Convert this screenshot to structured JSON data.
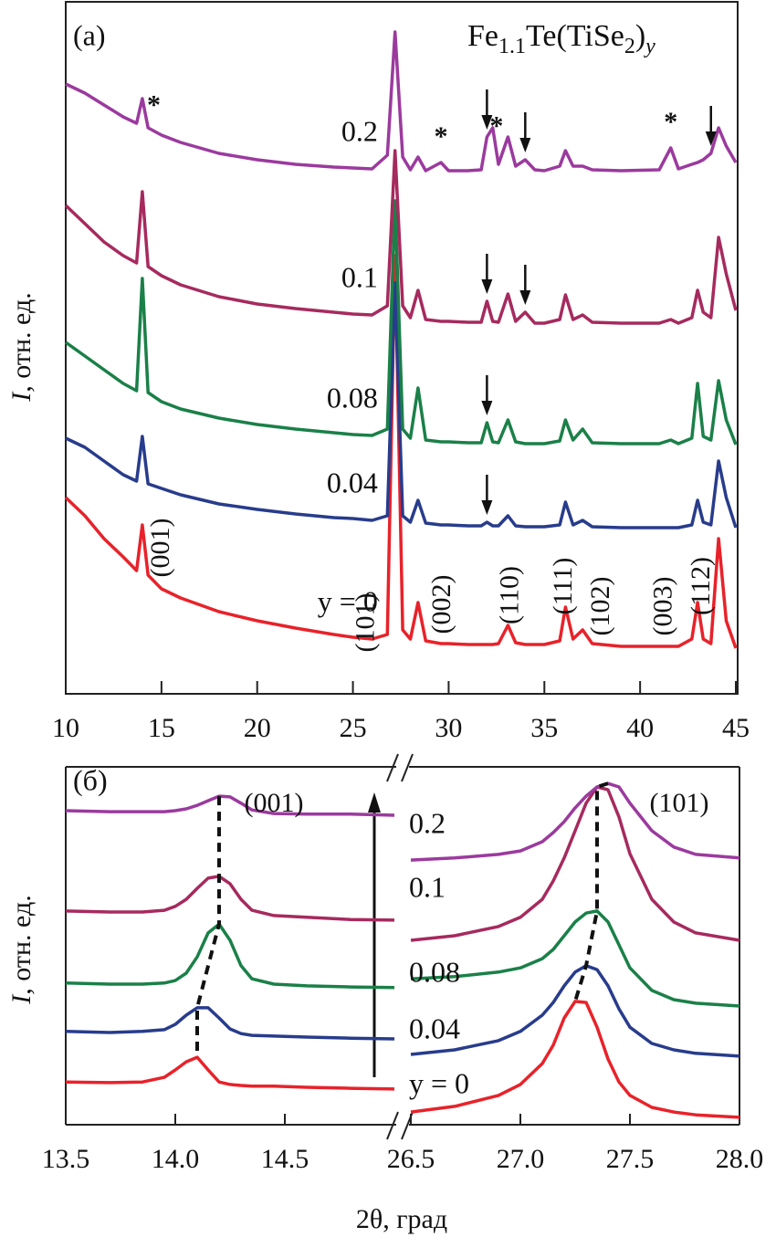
{
  "chart_data": [
    {
      "type": "line",
      "panel_label": "(a)",
      "title_parts": [
        {
          "text": "Fe"
        },
        {
          "text": "1.1",
          "sub": true
        },
        {
          "text": "Te(TiSe"
        },
        {
          "text": "2",
          "sub": true
        },
        {
          "text": ")"
        },
        {
          "text": "y",
          "sub": true,
          "italic": true
        }
      ],
      "y_label": {
        "var": "I",
        "text": ", отн. ед."
      },
      "xlim": [
        10,
        45
      ],
      "xticks": [
        10,
        15,
        20,
        25,
        30,
        35,
        40,
        45
      ],
      "ylim": [
        0,
        150
      ],
      "x": [
        10,
        11,
        12,
        13,
        13.7,
        14.0,
        14.3,
        15,
        16,
        18,
        20,
        22,
        24,
        25,
        26,
        26.8,
        27.2,
        27.6,
        28.0,
        28.4,
        28.8,
        29.6,
        30,
        31,
        31.7,
        32.0,
        32.3,
        32.6,
        33.1,
        33.5,
        34.0,
        34.5,
        35,
        35.8,
        36.1,
        36.5,
        37.0,
        37.5,
        39,
        41,
        41.6,
        42,
        42.7,
        43.0,
        43.3,
        43.7,
        44.1,
        44.5,
        45
      ],
      "marker_text": "*",
      "series": [
        {
          "name": "0.2",
          "color": "#9b3a9e",
          "arrows": [
            32.0,
            34.0,
            43.7
          ],
          "stars": [
            14.6,
            29.6,
            32.5,
            41.6
          ],
          "values": [
            133.6,
            131.6,
            129,
            126.4,
            125,
            130.4,
            124,
            122.4,
            120.8,
            118.4,
            117,
            116,
            115.4,
            115.2,
            115,
            118,
            145,
            117.6,
            114.8,
            117.6,
            114.6,
            116.4,
            114.6,
            114.6,
            114.8,
            122,
            124,
            116,
            122,
            115.6,
            117,
            114.8,
            114.6,
            115.6,
            119,
            115.6,
            115.6,
            114.8,
            114.6,
            114.8,
            119.6,
            115,
            116,
            116.4,
            117,
            118.4,
            124,
            120,
            116.4
          ]
        },
        {
          "name": "0.1",
          "color": "#a62a5e",
          "arrows": [
            32.0,
            34.0
          ],
          "values": [
            107,
            103,
            99,
            96,
            94.4,
            110,
            93.6,
            91.6,
            89.6,
            87,
            85.4,
            84.4,
            83.6,
            83.2,
            83,
            85,
            119,
            85,
            82.4,
            88.4,
            82,
            81.6,
            81.6,
            81.4,
            81.4,
            86,
            81.6,
            81.4,
            87.6,
            81.6,
            83.6,
            81.2,
            81.2,
            82,
            87.4,
            82,
            83,
            81.4,
            81.2,
            81.2,
            82,
            81.2,
            82.4,
            88.4,
            83.6,
            82.4,
            100,
            92,
            84
          ]
        },
        {
          "name": "0.08",
          "color": "#1a8048",
          "arrows": [
            32.0
          ],
          "values": [
            77,
            74,
            71,
            68,
            66.4,
            91,
            66,
            64,
            62.4,
            60.4,
            59,
            58,
            57.2,
            56.8,
            56.6,
            58,
            108,
            58,
            56,
            67,
            55.6,
            55.2,
            55.2,
            55,
            55,
            59.4,
            55.2,
            55,
            60,
            55.2,
            54.8,
            54.8,
            54.8,
            55.4,
            60,
            55.6,
            58,
            55,
            54.8,
            54.8,
            55.6,
            54.8,
            56,
            68,
            56.4,
            55.6,
            68.6,
            60,
            54.6
          ]
        },
        {
          "name": "0.04",
          "color": "#283c8c",
          "arrows": [
            32.0
          ],
          "values": [
            56,
            54,
            51,
            48,
            46.6,
            56.4,
            46,
            45,
            43.6,
            41.6,
            40.4,
            39.4,
            38.6,
            38.4,
            38,
            39,
            90,
            39,
            37.6,
            42.4,
            37.4,
            37,
            37,
            36.8,
            36.8,
            37.6,
            36.8,
            36.8,
            39,
            36.8,
            36.6,
            36.6,
            36.6,
            37,
            42,
            37,
            38,
            36.6,
            36.4,
            36.4,
            36.4,
            36.4,
            37,
            42.4,
            37.6,
            37,
            51,
            43,
            36.4
          ]
        },
        {
          "name": "y = 0",
          "color": "#e8222a",
          "values": [
            43,
            39,
            34,
            30,
            27,
            37,
            26,
            23,
            21,
            18,
            16,
            14.4,
            13,
            12.4,
            12,
            13,
            96,
            14,
            12,
            20,
            11.6,
            11,
            11,
            10.8,
            10.8,
            10.8,
            10.8,
            11,
            15,
            11.2,
            10.8,
            10.8,
            10.8,
            11.6,
            19,
            12,
            14,
            11,
            10.4,
            10.4,
            10.4,
            10.4,
            12,
            20,
            12,
            11,
            34,
            16,
            10
          ]
        }
      ],
      "peak_labels": [
        {
          "label": "(001)",
          "x": 14.0
        },
        {
          "label": "(101)",
          "x": 27.2
        },
        {
          "label": "(002)",
          "x": 28.4
        },
        {
          "label": "(110)",
          "x": 33.1
        },
        {
          "label": "(111)",
          "x": 36.1
        },
        {
          "label": "(102)",
          "x": 37.0
        },
        {
          "label": "(003)",
          "x": 41.6
        },
        {
          "label": "(112)",
          "x": 43.0
        }
      ]
    },
    {
      "type": "line",
      "panel_label": "(б)",
      "x_label": "2θ, град",
      "y_label": {
        "var": "I",
        "text": ", отн. ед."
      },
      "xlim": [
        13.5,
        15
      ],
      "xticks": [
        13.5,
        {
          "value": 14,
          "label": "14.0"
        },
        14.5
      ],
      "ylim": [
        0,
        100
      ],
      "x": [
        13.5,
        13.7,
        13.85,
        13.95,
        14.0,
        14.05,
        14.1,
        14.15,
        14.2,
        14.25,
        14.3,
        14.35,
        14.45,
        14.6,
        14.8,
        15.0
      ],
      "series": [
        {
          "color": "#9b3a9e",
          "values": [
            88.9,
            88.6,
            88.6,
            88.6,
            88.9,
            89.4,
            90.4,
            91.7,
            93.0,
            92.8,
            91.0,
            89.1,
            88.1,
            87.9,
            87.9,
            87.6
          ]
        },
        {
          "color": "#a62a5e",
          "values": [
            60.5,
            60.2,
            60.2,
            60.7,
            61.8,
            63.8,
            66.9,
            69.8,
            70.3,
            68.2,
            63.8,
            60.7,
            59.2,
            58.7,
            58.1,
            57.9
          ]
        },
        {
          "color": "#1a8048",
          "values": [
            40.1,
            39.8,
            39.8,
            40.1,
            40.8,
            42.9,
            47.5,
            54.3,
            56.8,
            52.2,
            45.0,
            41.3,
            39.8,
            39.3,
            39.0,
            38.8
          ]
        },
        {
          "color": "#283c8c",
          "values": [
            26.4,
            26.1,
            26.4,
            26.9,
            28.4,
            31.0,
            33.1,
            33.1,
            30.2,
            27.1,
            25.8,
            25.3,
            25.1,
            24.8,
            24.5,
            24.3
          ]
        },
        {
          "color": "#e8222a",
          "values": [
            12.1,
            11.9,
            12.1,
            13.4,
            15.5,
            17.8,
            19.1,
            15.5,
            12.1,
            11.4,
            11.1,
            10.9,
            10.9,
            10.6,
            10.3,
            10.1
          ]
        }
      ],
      "peak_labels": [
        {
          "label": "(001)",
          "x": 14.2
        }
      ]
    },
    {
      "type": "line",
      "xlim": [
        26.5,
        28
      ],
      "xticks": [
        26.5,
        {
          "value": 27,
          "label": "27.0"
        },
        27.5,
        {
          "value": 28,
          "label": "28.0"
        }
      ],
      "ylim": [
        0,
        100
      ],
      "x": [
        26.5,
        26.7,
        26.9,
        27.0,
        27.1,
        27.15,
        27.2,
        27.25,
        27.3,
        27.35,
        27.4,
        27.45,
        27.5,
        27.6,
        27.7,
        27.8,
        28.0
      ],
      "series": [
        {
          "name": "0.2",
          "color": "#9b3a9e",
          "values": [
            74.9,
            75.5,
            76.5,
            77.5,
            80.1,
            82.7,
            85.8,
            89.7,
            93.0,
            95.6,
            96.6,
            95.6,
            91.0,
            83.2,
            78.6,
            76.5,
            75.5
          ]
        },
        {
          "name": "0.1",
          "color": "#a62a5e",
          "values": [
            52.2,
            53.5,
            56.1,
            58.7,
            63.8,
            69.0,
            75.5,
            83.2,
            91.0,
            95.6,
            94.8,
            87.1,
            76.7,
            63.8,
            57.4,
            54.3,
            52.2
          ]
        },
        {
          "name": "0.08",
          "color": "#1a8048",
          "values": [
            41.3,
            41.9,
            43.2,
            44.4,
            47.0,
            49.6,
            53.5,
            57.4,
            59.9,
            60.5,
            57.4,
            50.9,
            44.4,
            38.0,
            35.4,
            34.4,
            33.6
          ]
        },
        {
          "name": "0.04",
          "color": "#283c8c",
          "values": [
            19.9,
            21.2,
            23.8,
            26.4,
            31.0,
            34.6,
            39.3,
            43.2,
            45.0,
            43.9,
            39.3,
            32.8,
            27.6,
            23.0,
            21.2,
            20.2,
            19.4
          ]
        },
        {
          "name": "y = 0",
          "color": "#e8222a",
          "values": [
            3.6,
            5.2,
            8.3,
            11.4,
            17.3,
            22.5,
            30.2,
            34.9,
            34.6,
            27.6,
            18.6,
            12.1,
            8.3,
            4.9,
            3.6,
            2.8,
            2.1
          ]
        }
      ],
      "peak_labels": [
        {
          "label": "(101)",
          "x": 27.4
        }
      ]
    }
  ]
}
